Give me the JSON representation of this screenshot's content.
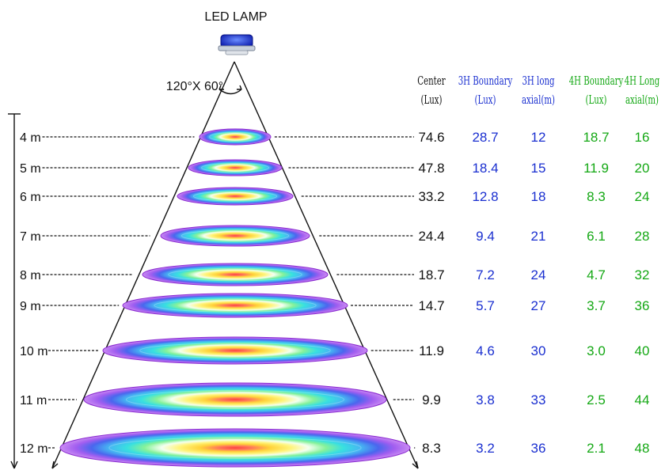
{
  "lamp": {
    "label": "LED LAMP",
    "beam_angle": "120°X 60°"
  },
  "headers": [
    {
      "lines": [
        "Center",
        "(Lux)"
      ],
      "color": "#111111"
    },
    {
      "lines": [
        "3H Boundary",
        "(Lux)"
      ],
      "color": "#1a2fd0"
    },
    {
      "lines": [
        "3H long",
        "axial(m)"
      ],
      "color": "#1a2fd0"
    },
    {
      "lines": [
        "4H Boundary",
        "(Lux)"
      ],
      "color": "#14a814"
    },
    {
      "lines": [
        "4H Long",
        "axial(m)"
      ],
      "color": "#14a814"
    }
  ],
  "colors": {
    "blue": "#1a2fd0",
    "green": "#14a814",
    "black": "#111111"
  },
  "rows": [
    {
      "height": "4 m",
      "center": "74.6",
      "b3": "28.7",
      "l3": "12",
      "b4": "18.7",
      "l4": "16"
    },
    {
      "height": "5 m",
      "center": "47.8",
      "b3": "18.4",
      "l3": "15",
      "b4": "11.9",
      "l4": "20"
    },
    {
      "height": "6 m",
      "center": "33.2",
      "b3": "12.8",
      "l3": "18",
      "b4": "8.3",
      "l4": "24"
    },
    {
      "height": "7 m",
      "center": "24.4",
      "b3": "9.4",
      "l3": "21",
      "b4": "6.1",
      "l4": "28"
    },
    {
      "height": "8 m",
      "center": "18.7",
      "b3": "7.2",
      "l3": "24",
      "b4": "4.7",
      "l4": "32"
    },
    {
      "height": "9 m",
      "center": "14.7",
      "b3": "5.7",
      "l3": "27",
      "b4": "3.7",
      "l4": "36"
    },
    {
      "height": "10 m",
      "center": "11.9",
      "b3": "4.6",
      "l3": "30",
      "b4": "3.0",
      "l4": "40"
    },
    {
      "height": "11 m",
      "center": "9.9",
      "b3": "3.8",
      "l3": "33",
      "b4": "2.5",
      "l4": "44"
    },
    {
      "height": "12 m",
      "center": "8.3",
      "b3": "3.2",
      "l3": "36",
      "b4": "2.1",
      "l4": "48"
    }
  ]
}
